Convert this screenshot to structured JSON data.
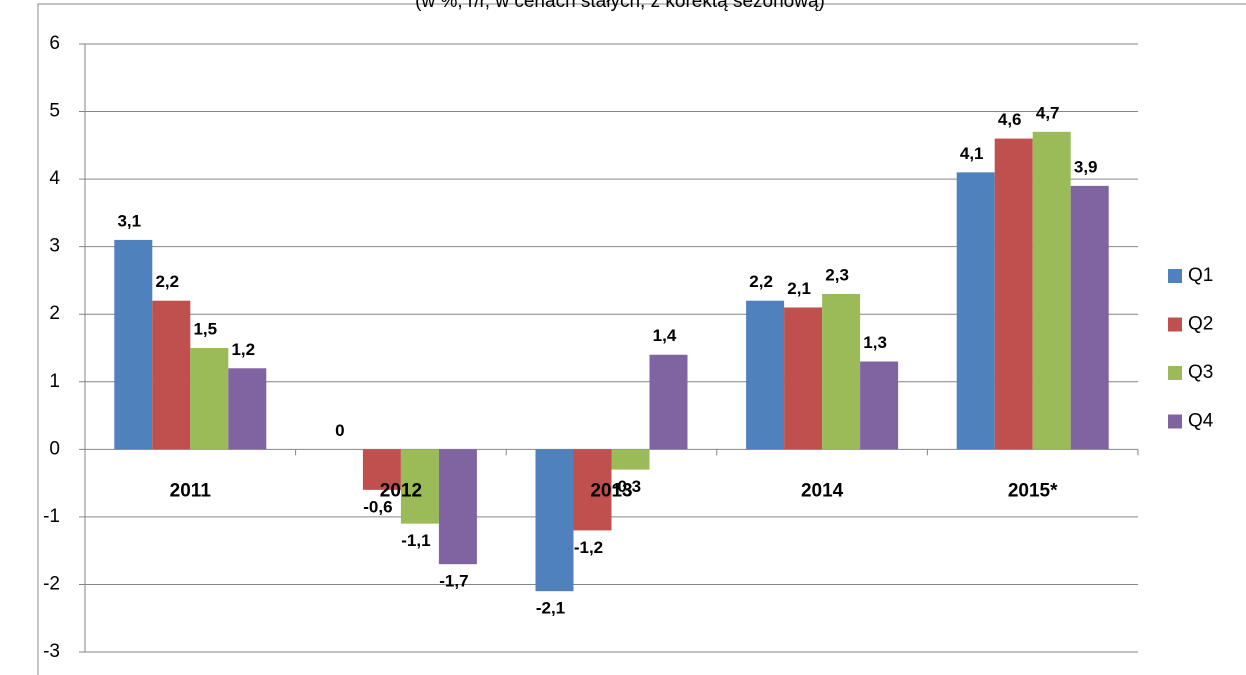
{
  "chart_data": {
    "type": "bar",
    "subtitle": "(w %, r/r, w cenach stałych, z korektą sezonową)",
    "categories": [
      "2011",
      "2012",
      "2013",
      "2014",
      "2015*"
    ],
    "series": [
      {
        "name": "Q1",
        "color": "#4f81bd",
        "values": [
          3.1,
          0,
          -2.1,
          2.2,
          4.1
        ],
        "value_labels": [
          "3,1",
          "0",
          "-2,1",
          "2,2",
          "4,1"
        ]
      },
      {
        "name": "Q2",
        "color": "#c0504d",
        "values": [
          2.2,
          -0.6,
          -1.2,
          2.1,
          4.6
        ],
        "value_labels": [
          "2,2",
          "-0,6",
          "-1,2",
          "2,1",
          "4,6"
        ]
      },
      {
        "name": "Q3",
        "color": "#9bbb59",
        "values": [
          1.5,
          -1.1,
          -0.3,
          2.3,
          4.7
        ],
        "value_labels": [
          "1,5",
          "-1,1",
          "-0,3",
          "2,3",
          "4,7"
        ]
      },
      {
        "name": "Q4",
        "color": "#8064a2",
        "values": [
          1.2,
          -1.7,
          1.4,
          1.3,
          3.9
        ],
        "value_labels": [
          "1,2",
          "-1,7",
          "1,4",
          "1,3",
          "3,9"
        ]
      }
    ],
    "ylim": [
      -3,
      6
    ],
    "yticks": [
      -3,
      -2,
      -1,
      0,
      1,
      2,
      3,
      4,
      5,
      6
    ],
    "grid": true,
    "legend": "right",
    "negative_label_color": "#ff0000"
  }
}
